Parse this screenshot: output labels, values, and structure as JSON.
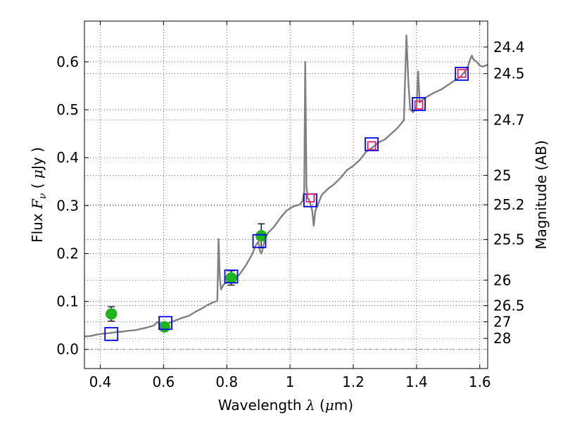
{
  "chart_data": {
    "type": "scatter",
    "xlabel": {
      "prefix": "Wavelength  ",
      "symbol": "λ",
      "unit_open": " (",
      "mu": "μ",
      "unit_rest": "m)"
    },
    "ylabel": {
      "prefix": "Flux  ",
      "symbol": "F",
      "sub": "ν",
      "unit_open": "  ( ",
      "mu": "μ",
      "unit_rest": "Jy )"
    },
    "y2label": "Magnitude (AB)",
    "xlim": [
      0.35,
      1.625
    ],
    "ylim": [
      -0.04,
      0.685
    ],
    "grid": true,
    "grid_style": "dotted",
    "zero_line": true,
    "x_ticks": [
      {
        "v": 0.4,
        "label": "0.4"
      },
      {
        "v": 0.6,
        "label": "0.6"
      },
      {
        "v": 0.8,
        "label": "0.8"
      },
      {
        "v": 1.0,
        "label": "1"
      },
      {
        "v": 1.2,
        "label": "1.2"
      },
      {
        "v": 1.4,
        "label": "1.4"
      },
      {
        "v": 1.6,
        "label": "1.6"
      }
    ],
    "y_ticks": [
      {
        "v": 0.0,
        "label": "0.0"
      },
      {
        "v": 0.1,
        "label": "0.1"
      },
      {
        "v": 0.2,
        "label": "0.2"
      },
      {
        "v": 0.3,
        "label": "0.3"
      },
      {
        "v": 0.4,
        "label": "0.4"
      },
      {
        "v": 0.5,
        "label": "0.5"
      },
      {
        "v": 0.6,
        "label": "0.6"
      }
    ],
    "y2_ticks": [
      {
        "mag": 24.4,
        "label": "24.4"
      },
      {
        "mag": 24.5,
        "label": "24.5"
      },
      {
        "mag": 24.7,
        "label": "24.7"
      },
      {
        "mag": 25.0,
        "label": "25"
      },
      {
        "mag": 25.2,
        "label": "25.2"
      },
      {
        "mag": 25.5,
        "label": "25.5"
      },
      {
        "mag": 26.0,
        "label": "26"
      },
      {
        "mag": 26.5,
        "label": "26.5"
      },
      {
        "mag": 27.0,
        "label": "27"
      },
      {
        "mag": 28.0,
        "label": "28"
      }
    ],
    "series": [
      {
        "kind": "line",
        "color": "#808080",
        "points": [
          [
            0.35,
            0.027
          ],
          [
            0.37,
            0.028
          ],
          [
            0.39,
            0.031
          ],
          [
            0.41,
            0.033
          ],
          [
            0.43,
            0.034
          ],
          [
            0.45,
            0.036
          ],
          [
            0.47,
            0.037
          ],
          [
            0.49,
            0.039
          ],
          [
            0.51,
            0.04
          ],
          [
            0.53,
            0.043
          ],
          [
            0.55,
            0.046
          ],
          [
            0.57,
            0.05
          ],
          [
            0.58,
            0.057
          ],
          [
            0.59,
            0.053
          ],
          [
            0.6,
            0.052
          ],
          [
            0.62,
            0.056
          ],
          [
            0.64,
            0.061
          ],
          [
            0.66,
            0.066
          ],
          [
            0.68,
            0.07
          ],
          [
            0.7,
            0.078
          ],
          [
            0.72,
            0.085
          ],
          [
            0.74,
            0.093
          ],
          [
            0.76,
            0.099
          ],
          [
            0.77,
            0.101
          ],
          [
            0.774,
            0.23
          ],
          [
            0.778,
            0.15
          ],
          [
            0.782,
            0.125
          ],
          [
            0.79,
            0.135
          ],
          [
            0.8,
            0.141
          ],
          [
            0.82,
            0.146
          ],
          [
            0.84,
            0.156
          ],
          [
            0.86,
            0.175
          ],
          [
            0.88,
            0.198
          ],
          [
            0.89,
            0.215
          ],
          [
            0.9,
            0.225
          ],
          [
            0.905,
            0.205
          ],
          [
            0.91,
            0.2
          ],
          [
            0.92,
            0.229
          ],
          [
            0.93,
            0.243
          ],
          [
            0.95,
            0.256
          ],
          [
            0.97,
            0.275
          ],
          [
            0.99,
            0.29
          ],
          [
            1.01,
            0.298
          ],
          [
            1.03,
            0.302
          ],
          [
            1.04,
            0.31
          ],
          [
            1.045,
            0.33
          ],
          [
            1.048,
            0.6
          ],
          [
            1.052,
            0.34
          ],
          [
            1.056,
            0.315
          ],
          [
            1.06,
            0.313
          ],
          [
            1.07,
            0.29
          ],
          [
            1.075,
            0.258
          ],
          [
            1.08,
            0.289
          ],
          [
            1.1,
            0.322
          ],
          [
            1.12,
            0.335
          ],
          [
            1.14,
            0.345
          ],
          [
            1.16,
            0.358
          ],
          [
            1.18,
            0.374
          ],
          [
            1.2,
            0.383
          ],
          [
            1.22,
            0.395
          ],
          [
            1.24,
            0.412
          ],
          [
            1.26,
            0.421
          ],
          [
            1.28,
            0.432
          ],
          [
            1.3,
            0.438
          ],
          [
            1.32,
            0.45
          ],
          [
            1.34,
            0.462
          ],
          [
            1.36,
            0.478
          ],
          [
            1.368,
            0.655
          ],
          [
            1.374,
            0.56
          ],
          [
            1.38,
            0.5
          ],
          [
            1.39,
            0.495
          ],
          [
            1.4,
            0.505
          ],
          [
            1.405,
            0.58
          ],
          [
            1.41,
            0.515
          ],
          [
            1.42,
            0.522
          ],
          [
            1.44,
            0.53
          ],
          [
            1.46,
            0.537
          ],
          [
            1.48,
            0.543
          ],
          [
            1.5,
            0.552
          ],
          [
            1.52,
            0.561
          ],
          [
            1.54,
            0.569
          ],
          [
            1.56,
            0.586
          ],
          [
            1.57,
            0.606
          ],
          [
            1.575,
            0.613
          ],
          [
            1.58,
            0.605
          ],
          [
            1.59,
            0.6
          ],
          [
            1.6,
            0.592
          ],
          [
            1.61,
            0.59
          ],
          [
            1.625,
            0.594
          ]
        ]
      },
      {
        "kind": "points",
        "marker": "circle",
        "color": "#1db41d",
        "points": [
          [
            0.435,
            0.074
          ],
          [
            0.603,
            0.047
          ],
          [
            0.814,
            0.149
          ],
          [
            0.909,
            0.237
          ]
        ],
        "yerr": [
          0.015,
          0.007,
          0.015,
          0.025
        ]
      },
      {
        "kind": "points",
        "marker": "square",
        "color": "#0000ff",
        "points": [
          [
            0.435,
            0.032
          ],
          [
            0.606,
            0.055
          ],
          [
            0.814,
            0.152
          ],
          [
            0.903,
            0.226
          ],
          [
            1.064,
            0.311
          ],
          [
            1.258,
            0.428
          ],
          [
            1.407,
            0.512
          ],
          [
            1.543,
            0.575
          ]
        ]
      },
      {
        "kind": "points",
        "marker": "square",
        "color": "#e0206a",
        "points": [
          [
            1.064,
            0.316
          ],
          [
            1.258,
            0.425
          ],
          [
            1.407,
            0.51
          ],
          [
            1.543,
            0.576
          ]
        ]
      }
    ]
  }
}
